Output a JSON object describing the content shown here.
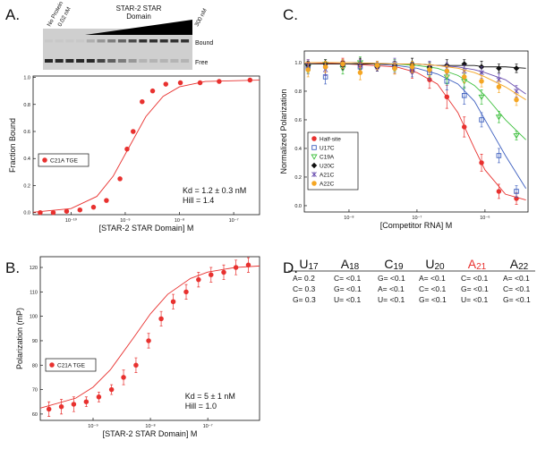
{
  "panel_labels": [
    "A.",
    "B.",
    "C.",
    "D."
  ],
  "gel": {
    "title": [
      "STAR-2 STAR",
      "Domain"
    ],
    "lane_labels": [
      "No Protein",
      "0.02 nM",
      "300 nM"
    ],
    "band_labels": [
      "Bound",
      "Free"
    ]
  },
  "chart_data": [
    {
      "type": "scatter",
      "xlabel": "[STAR-2 STAR Domain] M",
      "ylabel": "Fraction Bound",
      "xscale": "log",
      "xlim": [
        2e-11,
        3e-07
      ],
      "xticks": [
        {
          "value": 1e-10,
          "label": "10⁻¹⁰"
        },
        {
          "value": 1e-09,
          "label": "10⁻⁹"
        },
        {
          "value": 1e-08,
          "label": "10⁻⁸"
        },
        {
          "value": 1e-07,
          "label": "10⁻⁷"
        }
      ],
      "ylim": [
        -0.015,
        1.01
      ],
      "yticks": [
        {
          "value": 0,
          "label": "0.0"
        },
        0.2,
        0.4,
        0.6,
        0.8,
        {
          "value": 1,
          "label": "1.0"
        }
      ],
      "legend": "middle-left",
      "annotations": [
        "Kd = 1.2 ± 0.3 nM",
        "Hill = 1.4"
      ],
      "series": [
        {
          "name": "C21A TGE",
          "color": "#e8312f",
          "marker": "circle",
          "filled": true,
          "x": [
            2.7e-11,
            4.7e-11,
            8.3e-11,
            1.46e-10,
            2.6e-10,
            4.5e-10,
            8e-10,
            1.08e-09,
            1.4e-09,
            2.05e-09,
            3.2e-09,
            5.6e-09,
            1.04e-08,
            2.4e-08,
            5.4e-08,
            2e-07
          ],
          "values": [
            0.0,
            0.0,
            0.01,
            0.02,
            0.04,
            0.09,
            0.25,
            0.47,
            0.6,
            0.82,
            0.9,
            0.95,
            0.96,
            0.96,
            0.97,
            0.98
          ],
          "fit_x": [
            2e-11,
            1e-10,
            3e-10,
            6e-10,
            1.2e-09,
            2.4e-09,
            5e-09,
            1e-08,
            3e-08,
            3e-07
          ],
          "fit_values": [
            0.003,
            0.03,
            0.12,
            0.27,
            0.49,
            0.71,
            0.86,
            0.93,
            0.97,
            0.98
          ]
        }
      ]
    },
    {
      "type": "scatter",
      "xlabel": "[STAR-2 STAR Domain] M",
      "ylabel": "Polarization (mP)",
      "xscale": "log",
      "xlim": [
        1.2e-10,
        8e-07
      ],
      "xticks": [
        {
          "value": 1e-09,
          "label": "10⁻⁹"
        },
        {
          "value": 1e-08,
          "label": "10⁻⁸"
        },
        {
          "value": 1e-07,
          "label": "10⁻⁷"
        }
      ],
      "ylim": [
        57.4,
        124.4
      ],
      "yticks": [
        60,
        70,
        80,
        90,
        100,
        110,
        120
      ],
      "legend": "middle-left",
      "annotations": [
        "Kd = 5 ± 1 nM",
        "Hill = 1.0"
      ],
      "series": [
        {
          "name": "C21A TGE",
          "color": "#e8312f",
          "marker": "circle",
          "filled": true,
          "x": [
            1.7e-10,
            2.8e-10,
            4.6e-10,
            7.6e-10,
            1.26e-09,
            2.1e-09,
            3.4e-09,
            5.6e-09,
            9.3e-09,
            1.54e-08,
            2.5e-08,
            4.2e-08,
            6.9e-08,
            1.14e-07,
            1.9e-07,
            3.1e-07,
            5.1e-07
          ],
          "values": [
            62,
            63,
            64,
            65,
            67,
            70,
            75,
            80,
            90,
            99,
            106,
            110,
            115,
            117,
            118,
            120,
            121
          ],
          "errors": [
            3,
            3,
            3,
            2,
            2,
            2,
            3,
            3,
            3,
            3,
            3,
            3,
            3,
            3,
            3,
            3,
            3
          ],
          "fit_x": [
            1.2e-10,
            5e-10,
            1e-09,
            2e-09,
            5e-09,
            1e-08,
            2e-08,
            5e-08,
            1e-07,
            3e-07,
            8e-07
          ],
          "fit_values": [
            62.4,
            66.5,
            71,
            78.1,
            91,
            101,
            109,
            115.5,
            118.1,
            120,
            120.6
          ]
        }
      ]
    },
    {
      "type": "scatter",
      "xlabel": "[Competitor RNA] M",
      "ylabel": "Normalized Polarization",
      "xscale": "log",
      "xlim": [
        2.2e-09,
        4.3e-06
      ],
      "xticks": [
        {
          "value": 1e-08,
          "label": "10⁻⁸"
        },
        {
          "value": 1e-07,
          "label": "10⁻⁷"
        },
        {
          "value": 1e-06,
          "label": "10⁻⁶"
        }
      ],
      "ylim": [
        -0.044,
        1.081
      ],
      "yticks": [
        {
          "value": 0,
          "label": "0.0"
        },
        0.2,
        0.4,
        0.6,
        0.8,
        {
          "value": 1,
          "label": "1.0"
        }
      ],
      "legend": "bottom-left",
      "x": [
        2.5e-09,
        4.5e-09,
        8.1e-09,
        1.46e-08,
        2.6e-08,
        4.7e-08,
        8.5e-08,
        1.53e-07,
        2.75e-07,
        4.96e-07,
        8.9e-07,
        1.6e-06,
        2.9e-06
      ],
      "fit_x": [
        2.2e-09,
        1e-08,
        5e-08,
        1e-07,
        2e-07,
        4e-07,
        7e-07,
        1e-06,
        2e-06,
        4e-06
      ],
      "series": [
        {
          "name": "Half-site",
          "color": "#e8312f",
          "marker": "circle",
          "filled": true,
          "values": [
            0.99,
            0.97,
            1.0,
            0.98,
            0.97,
            0.96,
            0.94,
            0.88,
            0.76,
            0.55,
            0.3,
            0.1,
            0.05
          ],
          "errors": [
            0.03,
            0.04,
            0.03,
            0.04,
            0.03,
            0.04,
            0.05,
            0.06,
            0.08,
            0.07,
            0.06,
            0.05,
            0.04
          ],
          "fit_values": [
            1.0,
            0.99,
            0.97,
            0.93,
            0.85,
            0.65,
            0.4,
            0.25,
            0.08,
            0.04
          ]
        },
        {
          "name": "U17C",
          "color": "#3d5fbf",
          "marker": "square",
          "filled": false,
          "values": [
            0.96,
            0.9,
            0.99,
            0.97,
            0.98,
            0.97,
            0.95,
            0.93,
            0.87,
            0.77,
            0.6,
            0.35,
            0.1
          ],
          "errors": [
            0.04,
            0.05,
            0.03,
            0.04,
            0.03,
            0.04,
            0.05,
            0.05,
            0.06,
            0.06,
            0.05,
            0.05,
            0.04
          ],
          "fit_values": [
            1.0,
            1.0,
            0.98,
            0.96,
            0.92,
            0.85,
            0.73,
            0.6,
            0.35,
            0.12
          ]
        },
        {
          "name": "C19A",
          "color": "#3cbf3c",
          "marker": "triangle-down",
          "filled": false,
          "values": [
            0.97,
            0.99,
            0.96,
            1.0,
            0.97,
            0.98,
            0.97,
            0.95,
            0.9,
            0.87,
            0.76,
            0.62,
            0.49
          ],
          "errors": [
            0.04,
            0.03,
            0.04,
            0.04,
            0.03,
            0.04,
            0.04,
            0.05,
            0.05,
            0.05,
            0.05,
            0.04,
            0.03
          ],
          "fit_values": [
            1.0,
            1.0,
            0.99,
            0.98,
            0.96,
            0.91,
            0.84,
            0.77,
            0.6,
            0.46
          ]
        },
        {
          "name": "U20C",
          "color": "#111111",
          "marker": "diamond",
          "filled": true,
          "values": [
            0.98,
            0.99,
            0.98,
            0.99,
            0.97,
            0.98,
            0.99,
            0.97,
            0.98,
            0.99,
            0.97,
            0.96,
            0.96
          ],
          "errors": [
            0.03,
            0.03,
            0.03,
            0.04,
            0.03,
            0.03,
            0.04,
            0.03,
            0.04,
            0.03,
            0.04,
            0.03,
            0.03
          ],
          "fit_values": [
            0.99,
            0.99,
            0.99,
            0.99,
            0.98,
            0.98,
            0.98,
            0.97,
            0.97,
            0.96
          ]
        },
        {
          "name": "A21C",
          "color": "#6a4fb0",
          "marker": "star",
          "filled": false,
          "values": [
            0.98,
            0.95,
            0.99,
            0.98,
            0.97,
            0.99,
            0.96,
            0.97,
            0.96,
            0.94,
            0.93,
            0.88,
            0.8
          ],
          "errors": [
            0.04,
            0.04,
            0.03,
            0.04,
            0.03,
            0.04,
            0.04,
            0.04,
            0.04,
            0.04,
            0.04,
            0.04,
            0.04
          ],
          "fit_values": [
            1.0,
            1.0,
            0.99,
            0.99,
            0.98,
            0.97,
            0.95,
            0.93,
            0.88,
            0.78
          ]
        },
        {
          "name": "A22C",
          "color": "#f5a623",
          "marker": "circle",
          "filled": true,
          "values": [
            0.95,
            0.97,
            0.99,
            0.93,
            0.98,
            0.96,
            0.97,
            0.95,
            0.94,
            0.9,
            0.87,
            0.83,
            0.74
          ],
          "errors": [
            0.05,
            0.04,
            0.03,
            0.05,
            0.03,
            0.04,
            0.04,
            0.04,
            0.04,
            0.04,
            0.04,
            0.04,
            0.04
          ],
          "fit_values": [
            1.0,
            1.0,
            0.99,
            0.99,
            0.98,
            0.96,
            0.93,
            0.9,
            0.83,
            0.74
          ]
        }
      ]
    }
  ],
  "table": {
    "header": [
      {
        "letter": "U",
        "number": "17",
        "color": "#111111"
      },
      {
        "letter": "A",
        "number": "18",
        "color": "#111111"
      },
      {
        "letter": "C",
        "number": "19",
        "color": "#111111"
      },
      {
        "letter": "U",
        "number": "20",
        "color": "#111111"
      },
      {
        "letter": "A",
        "number": "21",
        "color": "#e8312f"
      },
      {
        "letter": "A",
        "number": "22",
        "color": "#111111"
      }
    ],
    "rows": [
      [
        "A= 0.2",
        "C= <0.1",
        "G= <0.1",
        "A= <0.1",
        "C= <0.1",
        "A= <0.1"
      ],
      [
        "C= 0.3",
        "G= <0.1",
        "A= <0.1",
        "C= <0.1",
        "G= <0.1",
        "C= <0.1"
      ],
      [
        "G= 0.3",
        "U= <0.1",
        "U= <0.1",
        "G= <0.1",
        "U= <0.1",
        "G= <0.1"
      ]
    ]
  }
}
